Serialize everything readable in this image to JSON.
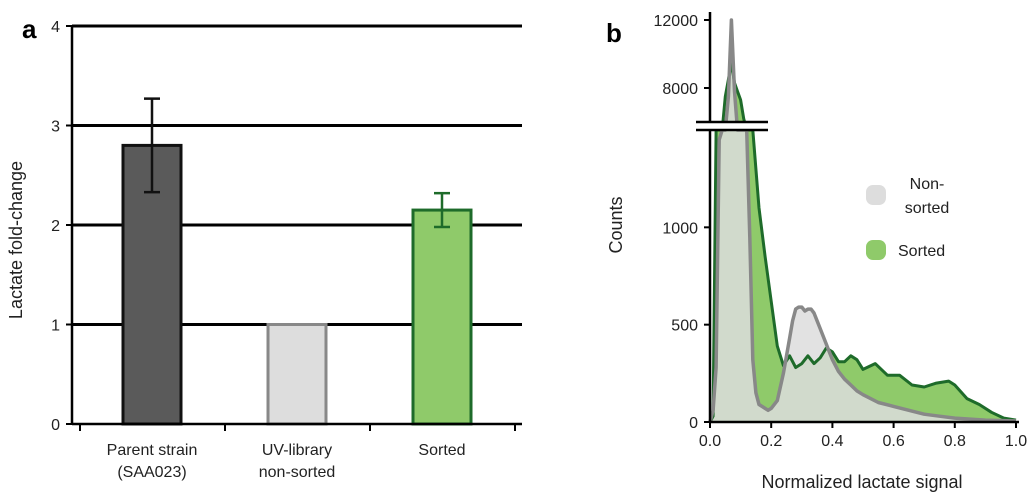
{
  "panel_a": {
    "letter": "a",
    "categories": [
      {
        "lines": [
          "Parent strain",
          "(SAA023)"
        ]
      },
      {
        "lines": [
          "UV-library",
          "non-sorted"
        ]
      },
      {
        "lines": [
          "Sorted"
        ]
      }
    ]
  },
  "panel_b": {
    "letter": "b",
    "legend": {
      "nonsorted": [
        "Non-",
        "sorted"
      ],
      "sorted": "Sorted"
    }
  },
  "colors": {
    "parent": "#5a5a5a",
    "nonsorted_fill": "#dddddd",
    "nonsorted_line": "#888888",
    "sorted_fill": "#8fca6a",
    "sorted_line": "#1e6b2a",
    "grid": "#000000"
  },
  "chart_data": [
    {
      "type": "bar",
      "title": "",
      "xlabel": "",
      "ylabel": "Lactate fold-change",
      "categories": [
        "Parent strain (SAA023)",
        "UV-library non-sorted",
        "Sorted"
      ],
      "values": [
        2.8,
        1.0,
        2.15
      ],
      "errors": [
        0.47,
        null,
        0.17
      ],
      "ylim": [
        0,
        4
      ],
      "yticks": [
        "0",
        "1",
        "2",
        "3",
        "4"
      ],
      "grid": "horizontal at 1, 2, 3, 4"
    },
    {
      "type": "area",
      "title": "",
      "xlabel": "Normalized lactate signal",
      "ylabel": "Counts",
      "xlim": [
        0,
        1.0
      ],
      "xticks": [
        "0.0",
        "0.2",
        "0.4",
        "0.6",
        "0.8",
        "1.0"
      ],
      "yticks_lower": [
        "0",
        "500",
        "1000"
      ],
      "yticks_upper": [
        "8000",
        "12000"
      ],
      "broken_axis": true,
      "series": [
        {
          "name": "Non-sorted",
          "x": [
            0.0,
            0.01,
            0.02,
            0.03,
            0.04,
            0.05,
            0.06,
            0.07,
            0.08,
            0.09,
            0.1,
            0.11,
            0.12,
            0.13,
            0.14,
            0.15,
            0.16,
            0.17,
            0.18,
            0.19,
            0.2,
            0.22,
            0.24,
            0.25,
            0.26,
            0.27,
            0.28,
            0.29,
            0.3,
            0.31,
            0.32,
            0.33,
            0.34,
            0.35,
            0.36,
            0.37,
            0.38,
            0.39,
            0.4,
            0.42,
            0.44,
            0.46,
            0.48,
            0.5,
            0.55,
            0.6,
            0.65,
            0.7,
            0.75,
            0.8,
            0.85,
            0.9,
            1.0
          ],
          "counts": [
            0,
            60,
            280,
            1450,
            2600,
            3800,
            7500,
            12000,
            7800,
            2600,
            1600,
            2300,
            1650,
            950,
            320,
            150,
            90,
            80,
            70,
            60,
            70,
            110,
            250,
            340,
            430,
            520,
            580,
            590,
            590,
            570,
            580,
            580,
            560,
            520,
            480,
            440,
            400,
            360,
            320,
            260,
            220,
            190,
            160,
            140,
            100,
            80,
            60,
            40,
            30,
            20,
            15,
            10,
            5
          ]
        },
        {
          "name": "Sorted",
          "x": [
            0.0,
            0.01,
            0.02,
            0.03,
            0.04,
            0.05,
            0.06,
            0.07,
            0.08,
            0.09,
            0.1,
            0.11,
            0.12,
            0.13,
            0.14,
            0.16,
            0.18,
            0.2,
            0.22,
            0.24,
            0.26,
            0.28,
            0.3,
            0.32,
            0.34,
            0.36,
            0.38,
            0.4,
            0.42,
            0.44,
            0.46,
            0.48,
            0.5,
            0.54,
            0.58,
            0.62,
            0.66,
            0.7,
            0.74,
            0.78,
            0.8,
            0.84,
            0.88,
            0.92,
            0.96,
            1.0
          ],
          "counts": [
            0,
            30,
            2700,
            3100,
            5000,
            7500,
            8500,
            9500,
            8300,
            7800,
            7300,
            6200,
            5500,
            4500,
            1500,
            1100,
            850,
            620,
            390,
            290,
            340,
            280,
            300,
            340,
            300,
            330,
            380,
            360,
            310,
            310,
            340,
            320,
            270,
            300,
            240,
            240,
            190,
            180,
            200,
            210,
            190,
            120,
            90,
            50,
            20,
            10
          ]
        }
      ]
    }
  ]
}
